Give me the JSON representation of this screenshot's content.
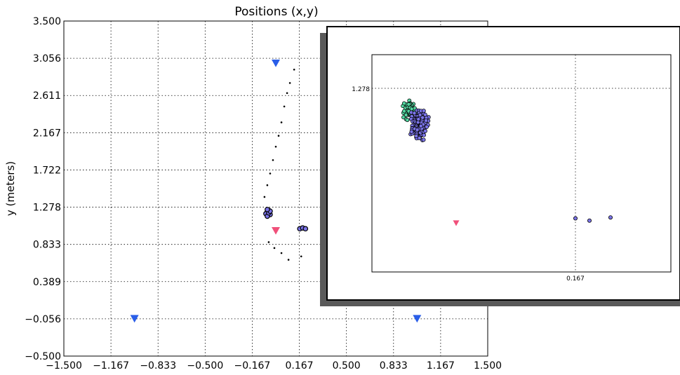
{
  "chart_data": [
    {
      "type": "scatter",
      "title": "Positions (x,y)",
      "xlabel": "",
      "ylabel": "y (meters)",
      "xlim": [
        -1.5,
        1.5
      ],
      "ylim": [
        -0.5,
        3.5
      ],
      "xticks": [
        "−1.500",
        "−1.167",
        "−0.833",
        "−0.500",
        "−0.167",
        "0.167",
        "0.500",
        "0.833",
        "1.167",
        "1.500"
      ],
      "yticks": [
        "−0.500",
        "−0.056",
        "0.389",
        "0.833",
        "1.278",
        "1.722",
        "2.167",
        "2.611",
        "3.056",
        "3.500"
      ],
      "grid": true,
      "series": [
        {
          "role": "path",
          "marker": "dot",
          "color": "#000000",
          "x": [
            -0.05,
            -0.01,
            0.04,
            0.09,
            0.18,
            -0.08,
            -0.06,
            -0.04,
            -0.02,
            0.0,
            0.02,
            0.04,
            0.06,
            0.08,
            0.1,
            0.13
          ],
          "y": [
            0.86,
            0.79,
            0.73,
            0.65,
            0.69,
            1.4,
            1.54,
            1.68,
            1.84,
            2.0,
            2.13,
            2.29,
            2.48,
            2.64,
            2.76,
            2.92
          ]
        },
        {
          "role": "cluster",
          "marker": "circle",
          "color": "#7b74e8",
          "x": [
            -0.06,
            -0.07,
            -0.05,
            -0.04,
            -0.06,
            -0.05,
            -0.04,
            -0.06,
            0.17,
            0.19,
            0.21
          ],
          "y": [
            1.22,
            1.2,
            1.24,
            1.19,
            1.17,
            1.21,
            1.23,
            1.25,
            1.02,
            1.03,
            1.02
          ]
        },
        {
          "role": "landmarks",
          "marker": "triangle",
          "color": "#2a5ee8",
          "x": [
            0.0,
            -1.0,
            1.0
          ],
          "y": [
            3.0,
            -0.05,
            -0.05
          ]
        },
        {
          "role": "robot",
          "marker": "triangle",
          "color": "#f0507a",
          "x": [
            0.0
          ],
          "y": [
            1.0
          ]
        }
      ]
    },
    {
      "type": "scatter",
      "title": "",
      "xticks": [
        "0.167"
      ],
      "yticks": [
        "1.278"
      ],
      "grid": true,
      "series": [
        {
          "role": "particles-green",
          "marker": "circle",
          "color": "#52d6a0",
          "count": 70
        },
        {
          "role": "particles-blue",
          "marker": "circle",
          "color": "#7b74e8",
          "count": 150
        },
        {
          "role": "outliers",
          "marker": "circle",
          "color": "#7b74e8",
          "x": [
            0.17,
            0.19,
            0.22
          ],
          "y": [
            1.04,
            1.035,
            1.042
          ]
        },
        {
          "role": "robot",
          "marker": "triangle",
          "color": "#f0507a",
          "x": [
            0.0
          ],
          "y": [
            1.03
          ]
        }
      ]
    }
  ]
}
